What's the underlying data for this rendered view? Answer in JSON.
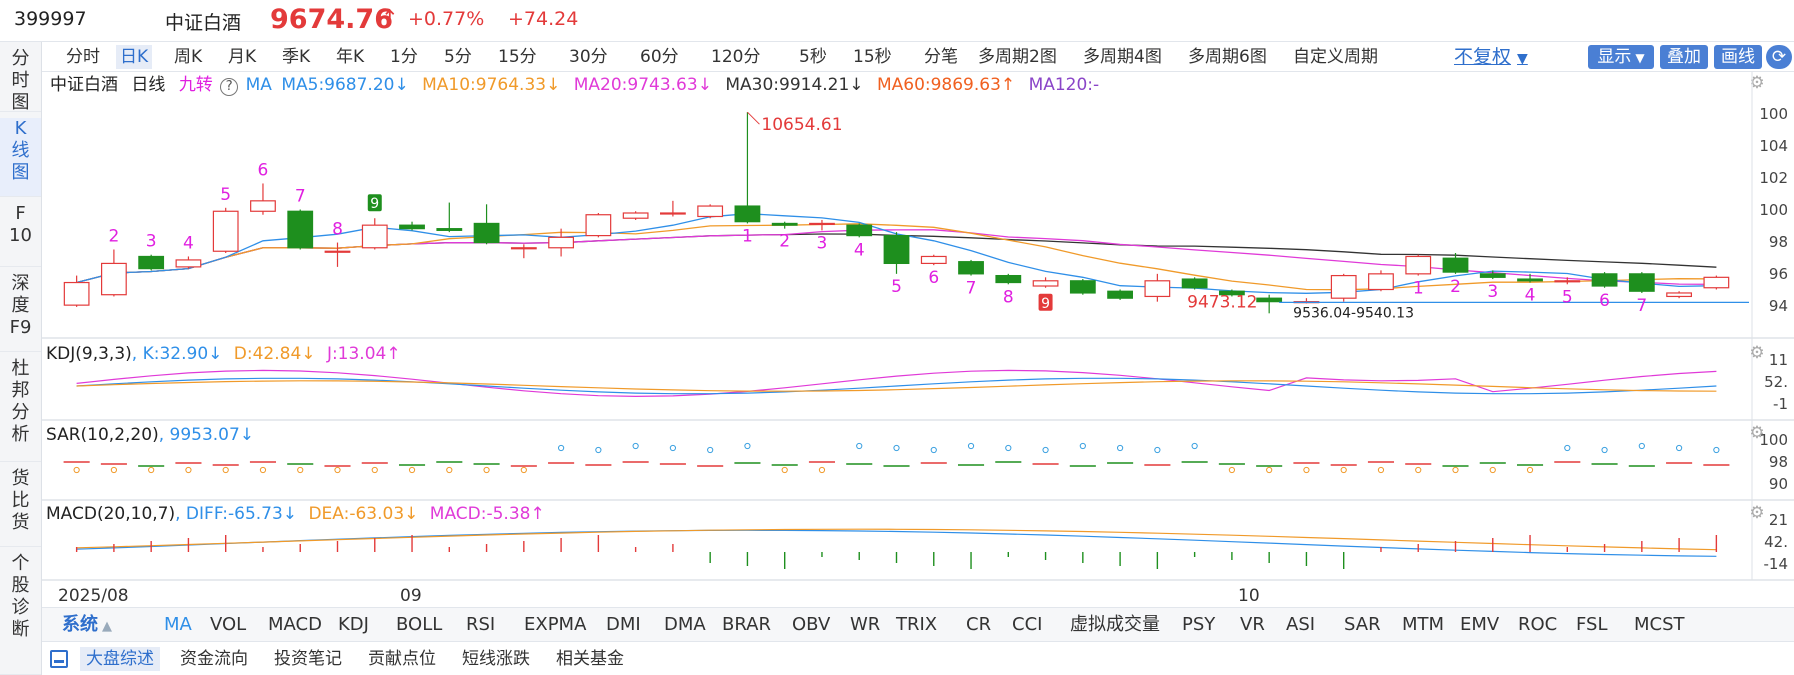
{
  "header": {
    "code": "399997",
    "name": "中证白酒",
    "price": "9674.76",
    "arrow": "↑",
    "pct": "+0.77%",
    "change": "+74.24"
  },
  "left_nav": [
    {
      "label": "分\n时\n图",
      "active": false
    },
    {
      "label": "K\n线\n图",
      "active": true
    },
    {
      "label": "F\n10",
      "active": false
    },
    {
      "label": "深\n度\nF9",
      "active": false
    },
    {
      "label": "杜\n邦\n分\n析",
      "active": false
    },
    {
      "label": "货\n比\n货",
      "active": false
    },
    {
      "label": "个\n股\n诊\n断",
      "active": false
    }
  ],
  "period_tabs": [
    {
      "label": "分时",
      "active": false
    },
    {
      "label": "日K",
      "active": true
    },
    {
      "label": "周K",
      "active": false
    },
    {
      "label": "月K",
      "active": false
    },
    {
      "label": "季K",
      "active": false
    },
    {
      "label": "年K",
      "active": false
    },
    {
      "label": "1分",
      "active": false
    },
    {
      "label": "5分",
      "active": false
    },
    {
      "label": "15分",
      "active": false
    },
    {
      "label": "30分",
      "active": false
    },
    {
      "label": "60分",
      "active": false
    },
    {
      "label": "120分",
      "active": false
    },
    {
      "label": "5秒",
      "active": false
    },
    {
      "label": "15秒",
      "active": false
    },
    {
      "label": "分笔",
      "active": false
    },
    {
      "label": "多周期2图",
      "active": false
    },
    {
      "label": "多周期4图",
      "active": false
    },
    {
      "label": "多周期6图",
      "active": false
    },
    {
      "label": "自定义周期",
      "active": false
    }
  ],
  "toolbar": {
    "fq": "不复权",
    "show": "显示",
    "overlay": "叠加",
    "draw": "画线"
  },
  "main_legend": {
    "name": "中证白酒",
    "period": "日线",
    "nine": "九转",
    "ma": "MA",
    "ma5": "MA5:9687.20↓",
    "ma10": "MA10:9764.33↓",
    "ma20": "MA20:9743.63↓",
    "ma30": "MA30:9914.21↓",
    "ma60": "MA60:9869.63↑",
    "ma120": "MA120:-"
  },
  "price_axis": [
    "100",
    "104",
    "102",
    "100",
    "98",
    "96",
    "94"
  ],
  "annotations": {
    "high": "10654.61",
    "low": "9473.12",
    "range": "9536.04-9540.13"
  },
  "kdj": {
    "title": "KDJ(9,3,3)",
    "k": ", K:32.90↓",
    "d": "D:42.84↓",
    "j": "J:13.04↑",
    "axis": [
      "11",
      "52.",
      "-1"
    ]
  },
  "sar": {
    "title": "SAR(10,2,20)",
    "val": ", 9953.07↓",
    "axis": [
      "100",
      "98",
      "90"
    ]
  },
  "macd": {
    "title": "MACD(20,10,7)",
    "diff": ", DIFF:-65.73↓",
    "dea": "DEA:-63.03↓",
    "macd": "MACD:-5.38↑",
    "axis": [
      "21",
      "42.",
      "-14"
    ]
  },
  "date_axis": [
    "2025/08",
    "09",
    "10"
  ],
  "indicator_group": "系统",
  "indicators": [
    "MA",
    "VOL",
    "MACD",
    "KDJ",
    "BOLL",
    "RSI",
    "EXPMA",
    "DMI",
    "DMA",
    "BRAR",
    "OBV",
    "WR",
    "TRIX",
    "CR",
    "CCI",
    "虚拟成交量",
    "PSY",
    "VR",
    "ASI",
    "SAR",
    "MTM",
    "EMV",
    "ROC",
    "FSL",
    "MCST"
  ],
  "bottom_tabs": [
    {
      "label": "大盘综述",
      "active": true
    },
    {
      "label": "资金流向",
      "active": false
    },
    {
      "label": "投资笔记",
      "active": false
    },
    {
      "label": "贡献点位",
      "active": false
    },
    {
      "label": "短线涨跌",
      "active": false
    },
    {
      "label": "相关基金",
      "active": false
    }
  ],
  "colors": {
    "up": "#e33a3a",
    "down": "#1e8f1e",
    "ma5": "#2f8fe8",
    "ma10": "#f09a2a",
    "ma20": "#e03ad8",
    "ma30": "#333333",
    "ma60": "#f06020",
    "ma120": "#8a45c8",
    "accent": "#2f6fcc",
    "nine": "#e020e0"
  },
  "chart_data": {
    "type": "candlestick",
    "title": "中证白酒 日线",
    "y_range": [
      9400,
      10700
    ],
    "candles": [
      {
        "o": 9520,
        "c": 9650,
        "h": 9690,
        "l": 9510
      },
      {
        "o": 9580,
        "c": 9760,
        "h": 9840,
        "l": 9570
      },
      {
        "o": 9800,
        "c": 9730,
        "h": 9810,
        "l": 9720
      },
      {
        "o": 9740,
        "c": 9780,
        "h": 9800,
        "l": 9730
      },
      {
        "o": 9830,
        "c": 10060,
        "h": 10080,
        "l": 9820
      },
      {
        "o": 10060,
        "c": 10120,
        "h": 10220,
        "l": 10040
      },
      {
        "o": 10060,
        "c": 9850,
        "h": 10070,
        "l": 9840
      },
      {
        "o": 9830,
        "c": 9830,
        "h": 9880,
        "l": 9740
      },
      {
        "o": 9850,
        "c": 9980,
        "h": 10020,
        "l": 9840
      },
      {
        "o": 9980,
        "c": 9960,
        "h": 10000,
        "l": 9950
      },
      {
        "o": 9960,
        "c": 9950,
        "h": 10110,
        "l": 9940
      },
      {
        "o": 9990,
        "c": 9880,
        "h": 10100,
        "l": 9870
      },
      {
        "o": 9850,
        "c": 9850,
        "h": 9870,
        "l": 9790
      },
      {
        "o": 9850,
        "c": 9910,
        "h": 9960,
        "l": 9800
      },
      {
        "o": 9920,
        "c": 10040,
        "h": 10050,
        "l": 9910
      },
      {
        "o": 10020,
        "c": 10050,
        "h": 10060,
        "l": 10010
      },
      {
        "o": 10050,
        "c": 10050,
        "h": 10120,
        "l": 10030
      },
      {
        "o": 10030,
        "c": 10090,
        "h": 10100,
        "l": 10020
      },
      {
        "o": 10090,
        "c": 10000,
        "h": 10630,
        "l": 9990
      },
      {
        "o": 9990,
        "c": 9980,
        "h": 10000,
        "l": 9960
      },
      {
        "o": 9990,
        "c": 9990,
        "h": 10010,
        "l": 9950
      },
      {
        "o": 9980,
        "c": 9920,
        "h": 9990,
        "l": 9910
      },
      {
        "o": 9920,
        "c": 9760,
        "h": 9940,
        "l": 9700
      },
      {
        "o": 9760,
        "c": 9800,
        "h": 9810,
        "l": 9750
      },
      {
        "o": 9770,
        "c": 9700,
        "h": 9780,
        "l": 9690
      },
      {
        "o": 9690,
        "c": 9650,
        "h": 9700,
        "l": 9640
      },
      {
        "o": 9630,
        "c": 9660,
        "h": 9680,
        "l": 9620
      },
      {
        "o": 9660,
        "c": 9590,
        "h": 9670,
        "l": 9580
      },
      {
        "o": 9600,
        "c": 9560,
        "h": 9610,
        "l": 9550
      },
      {
        "o": 9570,
        "c": 9660,
        "h": 9700,
        "l": 9540
      },
      {
        "o": 9670,
        "c": 9620,
        "h": 9680,
        "l": 9610
      },
      {
        "o": 9600,
        "c": 9580,
        "h": 9610,
        "l": 9570
      },
      {
        "o": 9560,
        "c": 9540,
        "h": 9580,
        "l": 9473
      },
      {
        "o": 9540,
        "c": 9540,
        "h": 9560,
        "l": 9530
      },
      {
        "o": 9560,
        "c": 9690,
        "h": 9700,
        "l": 9540
      },
      {
        "o": 9610,
        "c": 9700,
        "h": 9720,
        "l": 9600
      },
      {
        "o": 9700,
        "c": 9800,
        "h": 9810,
        "l": 9690
      },
      {
        "o": 9790,
        "c": 9710,
        "h": 9820,
        "l": 9700
      },
      {
        "o": 9700,
        "c": 9680,
        "h": 9720,
        "l": 9670
      },
      {
        "o": 9670,
        "c": 9660,
        "h": 9700,
        "l": 9650
      },
      {
        "o": 9660,
        "c": 9660,
        "h": 9680,
        "l": 9640
      },
      {
        "o": 9700,
        "c": 9630,
        "h": 9710,
        "l": 9620
      },
      {
        "o": 9700,
        "c": 9600,
        "h": 9710,
        "l": 9590
      },
      {
        "o": 9570,
        "c": 9590,
        "h": 9600,
        "l": 9560
      },
      {
        "o": 9620,
        "c": 9680,
        "h": 9690,
        "l": 9610
      }
    ]
  }
}
